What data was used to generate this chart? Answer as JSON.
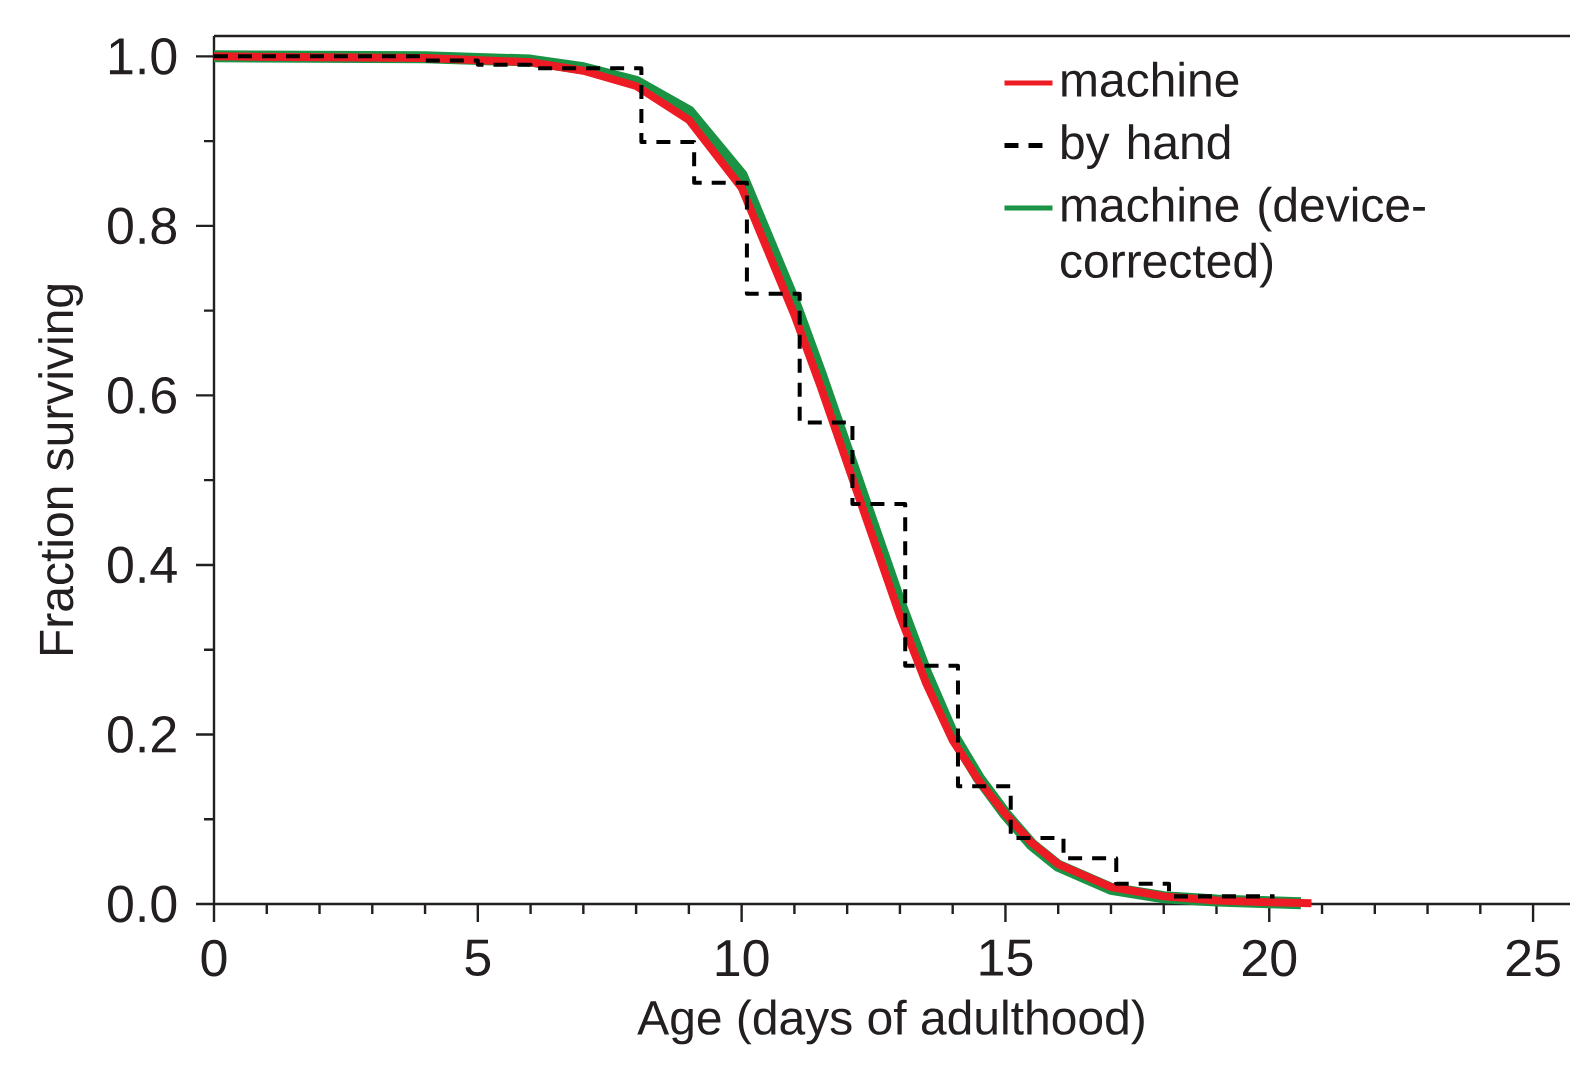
{
  "chart_data": {
    "type": "line",
    "xlabel": "Age (days of adulthood)",
    "ylabel": "Fraction surviving",
    "xlim": [
      0,
      25.7
    ],
    "ylim": [
      0,
      1.024
    ],
    "xticks": [
      0,
      {
        "value": 1,
        "label": null
      },
      {
        "value": 2,
        "label": null
      },
      {
        "value": 3,
        "label": null
      },
      {
        "value": 4,
        "label": null
      },
      5,
      {
        "value": 6,
        "label": null
      },
      {
        "value": 7,
        "label": null
      },
      {
        "value": 8,
        "label": null
      },
      {
        "value": 9,
        "label": null
      },
      10,
      {
        "value": 11,
        "label": null
      },
      {
        "value": 12,
        "label": null
      },
      {
        "value": 13,
        "label": null
      },
      {
        "value": 14,
        "label": null
      },
      15,
      {
        "value": 16,
        "label": null
      },
      {
        "value": 17,
        "label": null
      },
      {
        "value": 18,
        "label": null
      },
      {
        "value": 19,
        "label": null
      },
      20,
      {
        "value": 21,
        "label": null
      },
      {
        "value": 22,
        "label": null
      },
      {
        "value": 23,
        "label": null
      },
      {
        "value": 24,
        "label": null
      },
      25
    ],
    "yticks": [
      {
        "value": 0,
        "label": "0.0"
      },
      {
        "value": 0.1,
        "label": null
      },
      0.2,
      {
        "value": 0.3,
        "label": null
      },
      0.4,
      {
        "value": 0.5,
        "label": null
      },
      0.6,
      {
        "value": 0.7,
        "label": null
      },
      0.8,
      {
        "value": 0.9,
        "label": null
      },
      {
        "value": 1,
        "label": "1.0"
      }
    ],
    "legend": "top right",
    "grid": false,
    "marker": "none",
    "series": [
      {
        "name": "machine (device-corrected)",
        "color": "#1a9444",
        "x": [
          0,
          4,
          6,
          7,
          8,
          9,
          10,
          10.5,
          11,
          11.5,
          12,
          12.5,
          13,
          13.5,
          14,
          14.5,
          15,
          15.5,
          16,
          17,
          18,
          19,
          20,
          20.6
        ],
        "values": [
          1,
          0.999,
          0.995,
          0.986,
          0.97,
          0.935,
          0.86,
          0.785,
          0.71,
          0.625,
          0.535,
          0.445,
          0.355,
          0.272,
          0.2,
          0.148,
          0.106,
          0.07,
          0.045,
          0.018,
          0.008,
          0.004,
          0.002,
          0.001
        ]
      },
      {
        "name": "machine",
        "color": "#ed1c24",
        "x": [
          0,
          4,
          6,
          7,
          8,
          9,
          10,
          10.5,
          11,
          11.5,
          12,
          12.5,
          13,
          13.5,
          14,
          14.5,
          15,
          15.5,
          16,
          17,
          18,
          19,
          20,
          20.8
        ],
        "values": [
          1,
          0.998,
          0.993,
          0.983,
          0.965,
          0.925,
          0.845,
          0.77,
          0.695,
          0.61,
          0.52,
          0.43,
          0.34,
          0.26,
          0.193,
          0.145,
          0.106,
          0.072,
          0.047,
          0.02,
          0.009,
          0.004,
          0.002,
          0.001
        ]
      },
      {
        "name": "by hand",
        "type": "step",
        "line_style": "dashed",
        "color": "#000000",
        "x": [
          0,
          4,
          5,
          6,
          8.1,
          9.1,
          10.1,
          11.1,
          12.1,
          13.1,
          14.1,
          15.1,
          16.1,
          17.1,
          18.1,
          20.1
        ],
        "values": [
          1,
          0.995,
          0.99,
          0.986,
          0.899,
          0.851,
          0.72,
          0.568,
          0.472,
          0.281,
          0.139,
          0.078,
          0.054,
          0.024,
          0.009,
          0.009
        ]
      }
    ]
  }
}
